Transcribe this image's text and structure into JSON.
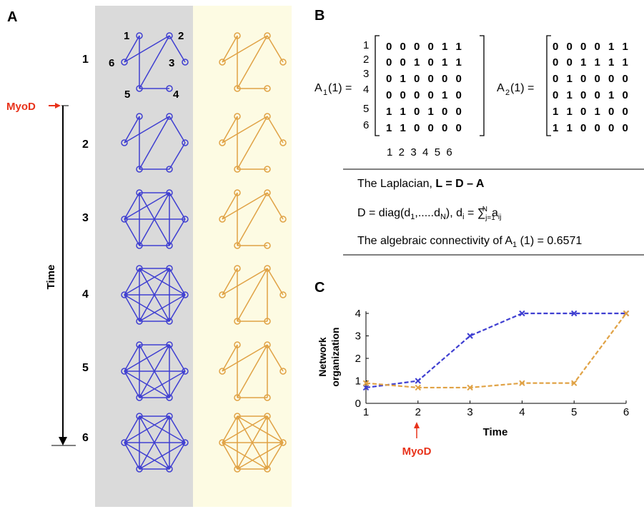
{
  "panels": {
    "a": "A",
    "b": "B",
    "c": "C"
  },
  "colors": {
    "blue": "#3f3fd1",
    "orange": "#e0a245",
    "red": "#e8321a",
    "grey_bg": "#d8d8d8",
    "yellow_bg": "#fdfbe4"
  },
  "panel_a": {
    "node_labels": [
      "1",
      "2",
      "3",
      "4",
      "5",
      "6"
    ],
    "time_points": [
      "1",
      "2",
      "3",
      "4",
      "5",
      "6"
    ],
    "time_label": "Time",
    "marker_label": "MyoD"
  },
  "panel_b": {
    "a1_label": "A",
    "a1_sub": "1",
    "a1_arg": "(1) =",
    "a2_label": "A",
    "a2_sub": "2",
    "a2_arg": "(1) =",
    "row_indices": [
      "1",
      "2",
      "3",
      "4",
      "5",
      "6"
    ],
    "col_indices": "1  2  3  4  5  6",
    "matrix_a1": [
      "0 0 0 0 1 1",
      "0 0 1 0 1 1",
      "0 1 0 0 0 0",
      "0 0 0 0 1 0",
      "1 1 0 1 0 0",
      "1 1 0 0 0 0"
    ],
    "matrix_a2": [
      "0 0 0 0 1 1",
      "0 0 1 1 1 1",
      "0 1 0 0 0 0",
      "0 1 0 0 1 0",
      "1 1 0 1 0 0",
      "1 1 0 0 0 0"
    ],
    "laplacian_prefix": "The Laplacian, ",
    "laplacian_eq": "L = D – A",
    "degree_prefix": "D = diag(d",
    "degree_sub1": "1",
    "degree_mid": ",.....d",
    "degree_subN": "N",
    "degree_mid2": "), d",
    "degree_subi": "i",
    "degree_eq": " = ∑",
    "degree_sum_sub": "j=1",
    "degree_sum_sup": "N",
    "degree_a": "a",
    "degree_a_sub": "ij",
    "conn_prefix": "The algebraic connectivity of A",
    "conn_sub": "1",
    "conn_suffix": " (1) = 0.6571"
  },
  "chart_data": {
    "type": "line",
    "x": [
      1,
      2,
      3,
      4,
      5,
      6
    ],
    "series": [
      {
        "values": [
          0.7,
          1.0,
          3.0,
          4.0,
          4.0,
          4.0
        ],
        "color": "#3f3fd1"
      },
      {
        "values": [
          0.9,
          0.7,
          0.7,
          0.9,
          0.9,
          4.0
        ],
        "color": "#e0a245"
      }
    ],
    "xlabel": "Time",
    "ylabel_line1": "Network",
    "ylabel_line2": "organization",
    "xlim": [
      1,
      6
    ],
    "ylim": [
      0,
      4
    ],
    "xticks": [
      "1",
      "2",
      "3",
      "4",
      "5",
      "6"
    ],
    "yticks": [
      "0",
      "1",
      "2",
      "3",
      "4"
    ],
    "annotation": "MyoD",
    "annotation_x": 2,
    "grid": false
  }
}
